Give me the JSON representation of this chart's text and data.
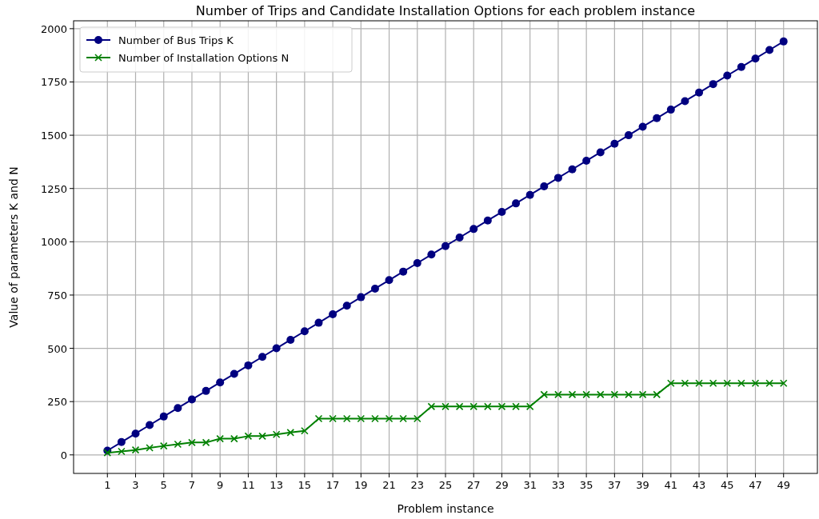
{
  "chart_data": {
    "type": "line",
    "title": "Number of Trips and Candidate Installation Options for each problem instance",
    "xlabel": "Problem instance",
    "ylabel": "Value of parameters K and N",
    "x": [
      1,
      2,
      3,
      4,
      5,
      6,
      7,
      8,
      9,
      10,
      11,
      12,
      13,
      14,
      15,
      16,
      17,
      18,
      19,
      20,
      21,
      22,
      23,
      24,
      25,
      26,
      27,
      28,
      29,
      30,
      31,
      32,
      33,
      34,
      35,
      36,
      37,
      38,
      39,
      40,
      41,
      42,
      43,
      44,
      45,
      46,
      47,
      48,
      49
    ],
    "series": [
      {
        "name": "Number of Bus Trips K",
        "color": "#000080",
        "marker": "circle",
        "values": [
          20,
          60,
          100,
          140,
          180,
          220,
          260,
          300,
          340,
          380,
          420,
          460,
          500,
          540,
          580,
          620,
          660,
          700,
          740,
          780,
          820,
          860,
          900,
          940,
          980,
          1020,
          1060,
          1100,
          1140,
          1180,
          1220,
          1260,
          1300,
          1340,
          1380,
          1420,
          1460,
          1500,
          1540,
          1580,
          1620,
          1660,
          1700,
          1740,
          1780,
          1820,
          1860,
          1900,
          1940
        ]
      },
      {
        "name": "Number of Installation Options N",
        "color": "#008000",
        "marker": "cross",
        "values": [
          10,
          16,
          23,
          33,
          42,
          50,
          58,
          58,
          76,
          76,
          88,
          88,
          96,
          105,
          113,
          170,
          170,
          170,
          170,
          170,
          170,
          170,
          170,
          227,
          227,
          227,
          227,
          227,
          227,
          227,
          227,
          283,
          283,
          283,
          283,
          283,
          283,
          283,
          283,
          283,
          336,
          336,
          336,
          336,
          336,
          336,
          336,
          336,
          336
        ]
      }
    ],
    "xlim": [
      -1.4,
      51.4
    ],
    "xticks": [
      1,
      3,
      5,
      7,
      9,
      11,
      13,
      15,
      17,
      19,
      21,
      23,
      25,
      27,
      29,
      31,
      33,
      35,
      37,
      39,
      41,
      43,
      45,
      47,
      49
    ],
    "ylim": [
      -87,
      2037
    ],
    "yticks": [
      0,
      250,
      500,
      750,
      1000,
      1250,
      1500,
      1750,
      2000
    ],
    "grid": true,
    "legend": "top left",
    "line_style": "solid"
  }
}
